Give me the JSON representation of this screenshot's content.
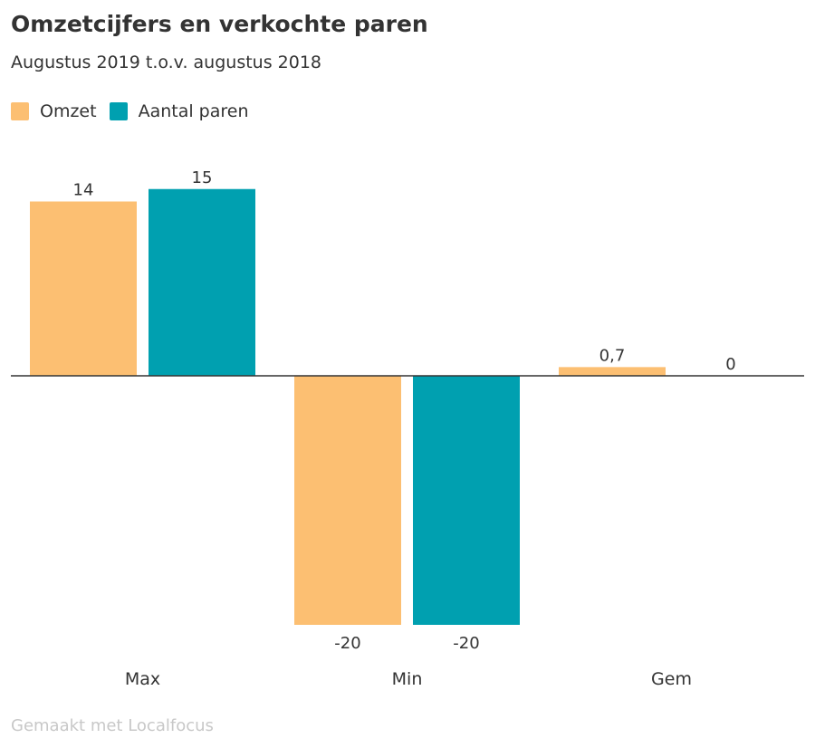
{
  "title": "Omzetcijfers en verkochte paren",
  "subtitle": "Augustus 2019 t.o.v. augustus 2018",
  "legend": [
    {
      "label": "Omzet",
      "color": "#fcbf72"
    },
    {
      "label": "Aantal paren",
      "color": "#00a0b0"
    }
  ],
  "credit": "Gemaakt met Localfocus",
  "chart_data": {
    "type": "bar",
    "categories": [
      "Max",
      "Min",
      "Gem"
    ],
    "series": [
      {
        "name": "Omzet",
        "color": "#fcbf72",
        "values": [
          14,
          -20,
          0.7
        ],
        "labels": [
          "14",
          "-20",
          "0,7"
        ]
      },
      {
        "name": "Aantal paren",
        "color": "#00a0b0",
        "values": [
          15,
          -20,
          0
        ],
        "labels": [
          "15",
          "-20",
          "0"
        ]
      }
    ],
    "ylim": [
      -20,
      15
    ],
    "grid": false,
    "legend_position": "top-left",
    "zero_line": true
  }
}
